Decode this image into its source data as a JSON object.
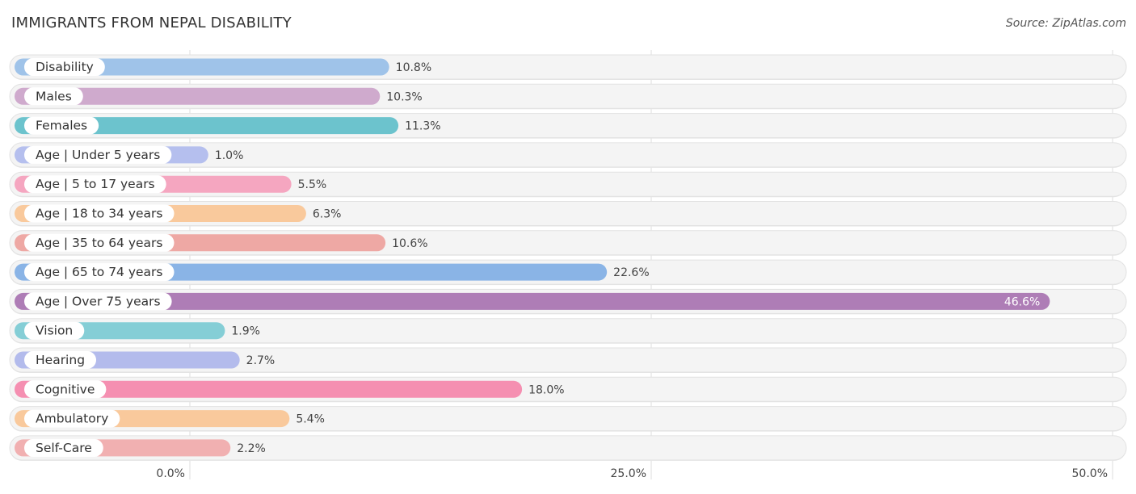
{
  "title": "IMMIGRANTS FROM NEPAL DISABILITY",
  "source": "Source: ZipAtlas.com",
  "chart_data": {
    "type": "bar",
    "orientation": "horizontal",
    "categories": [
      "Disability",
      "Males",
      "Females",
      "Age | Under 5 years",
      "Age | 5 to 17 years",
      "Age | 18 to 34 years",
      "Age | 35 to 64 years",
      "Age | 65 to 74 years",
      "Age | Over 75 years",
      "Vision",
      "Hearing",
      "Cognitive",
      "Ambulatory",
      "Self-Care"
    ],
    "values": [
      10.8,
      10.3,
      11.3,
      1.0,
      5.5,
      6.3,
      10.6,
      22.6,
      46.6,
      1.9,
      2.7,
      18.0,
      5.4,
      2.2
    ],
    "value_labels": [
      "10.8%",
      "10.3%",
      "11.3%",
      "1.0%",
      "5.5%",
      "6.3%",
      "10.6%",
      "22.6%",
      "46.6%",
      "1.9%",
      "2.7%",
      "18.0%",
      "5.4%",
      "2.2%"
    ],
    "colors": [
      "#9fc3e9",
      "#cfaacd",
      "#6cc3cd",
      "#b5bfee",
      "#f5a6c0",
      "#f9c99c",
      "#eea8a4",
      "#8ab4e6",
      "#ae7db6",
      "#85ced6",
      "#b3bbec",
      "#f58fb1",
      "#f9c99c",
      "#f1b0b1"
    ],
    "xticks": [
      0,
      25,
      50
    ],
    "xtick_labels": [
      "0.0%",
      "25.0%",
      "50.0%"
    ],
    "xlim": [
      0,
      50
    ],
    "grid": true
  }
}
